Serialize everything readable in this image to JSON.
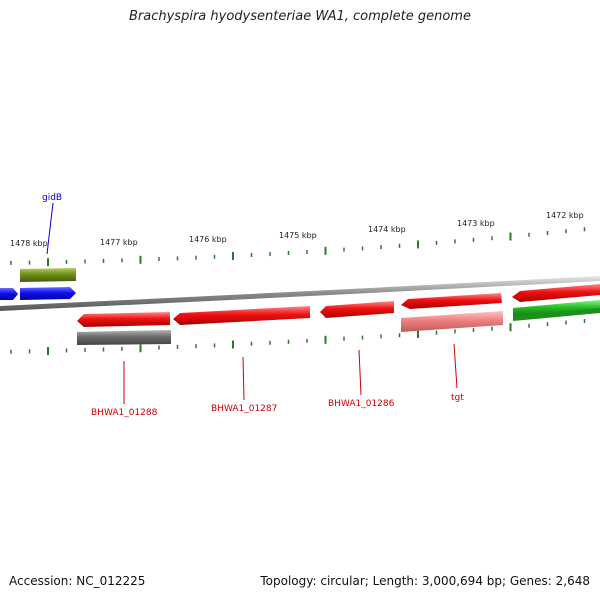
{
  "title": "Brachyspira hyodysenteriae WA1, complete genome",
  "footer": {
    "accession": "Accession: NC_012225",
    "summary": "Topology: circular; Length: 3,000,694 bp; Genes: 2,648"
  },
  "colors": {
    "background": "#ffffff",
    "backbone": "#8a8a8a",
    "tick": "#2a7a2a",
    "gene_red": "#ee1111",
    "gene_blue": "#1010ee",
    "gene_olive": "#6f8f1a",
    "gene_gray": "#6a6a6a",
    "gene_pink": "#ee8080",
    "gene_green": "#22bb22",
    "label_red": "#cc0000",
    "label_blue": "#0000cc"
  },
  "scale_labels": [
    "1478 kbp",
    "1477 kbp",
    "1476 kbp",
    "1475 kbp",
    "1474 kbp",
    "1473 kbp",
    "1472 kbp"
  ],
  "gene_labels": [
    {
      "text": "gidB",
      "color": "blue"
    },
    {
      "text": "BHWA1_01288",
      "color": "red"
    },
    {
      "text": "BHWA1_01287",
      "color": "red"
    },
    {
      "text": "BHWA1_01286",
      "color": "red"
    },
    {
      "text": "tgt",
      "color": "red"
    }
  ]
}
